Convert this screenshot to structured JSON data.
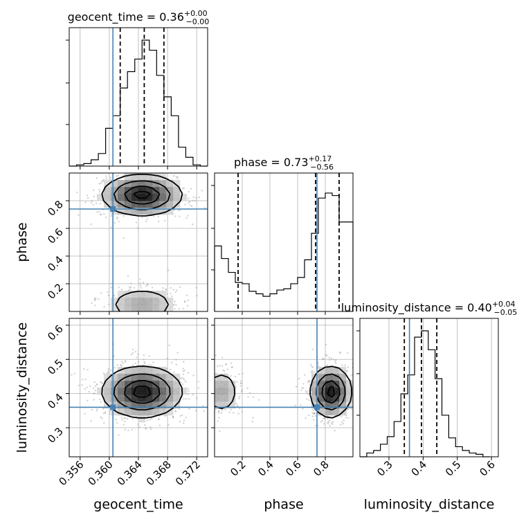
{
  "chart_data": {
    "type": "corner",
    "parameters": [
      "geocent_time",
      "phase",
      "luminosity_distance"
    ],
    "axis_labels": {
      "geocent_time": "geocent_time",
      "phase": "phase",
      "luminosity_distance": "luminosity_distance"
    },
    "ranges": {
      "geocent_time": [
        0.3545,
        0.3735
      ],
      "phase": [
        0.0,
        1.0
      ],
      "luminosity_distance": [
        0.215,
        0.62
      ]
    },
    "ticks": {
      "geocent_time": [
        "0.356",
        "0.360",
        "0.364",
        "0.368",
        "0.372"
      ],
      "phase": [
        "0.2",
        "0.4",
        "0.6",
        "0.8"
      ],
      "luminosity_distance": [
        "0.3",
        "0.4",
        "0.5",
        "0.6"
      ]
    },
    "truths": {
      "geocent_time": 0.3605,
      "phase": 0.74,
      "luminosity_distance": 0.36
    },
    "titles": {
      "geocent_time": {
        "name": "geocent_time = 0.36",
        "plus": "+0.00",
        "minus": "−0.00"
      },
      "phase": {
        "name": "phase = 0.73",
        "plus": "+0.17",
        "minus": "−0.56"
      },
      "luminosity_distance": {
        "name": "luminosity_distance = 0.40",
        "plus": "+0.04",
        "minus": "−0.05"
      }
    },
    "quantiles": {
      "geocent_time": [
        0.3615,
        0.3648,
        0.3675
      ],
      "phase": [
        0.17,
        0.73,
        0.9
      ],
      "luminosity_distance": [
        0.345,
        0.395,
        0.44
      ]
    },
    "histograms": {
      "geocent_time": {
        "edges": [
          0.3545,
          0.3555,
          0.3565,
          0.3575,
          0.3585,
          0.3595,
          0.3605,
          0.3615,
          0.3625,
          0.3635,
          0.3645,
          0.3655,
          0.3665,
          0.3675,
          0.3685,
          0.3695,
          0.3705,
          0.3715,
          0.3725,
          0.3735
        ],
        "heights": [
          0.0,
          0.01,
          0.02,
          0.05,
          0.1,
          0.3,
          0.4,
          0.62,
          0.75,
          0.85,
          1.0,
          0.92,
          0.72,
          0.55,
          0.4,
          0.15,
          0.07,
          0.01,
          0.0
        ]
      },
      "phase": {
        "edges": [
          0.0,
          0.05,
          0.1,
          0.15,
          0.2,
          0.25,
          0.3,
          0.35,
          0.4,
          0.45,
          0.5,
          0.55,
          0.6,
          0.65,
          0.7,
          0.75,
          0.8,
          0.85,
          0.9,
          0.95,
          1.0
        ],
        "heights": [
          0.52,
          0.42,
          0.31,
          0.23,
          0.22,
          0.16,
          0.14,
          0.12,
          0.14,
          0.17,
          0.18,
          0.22,
          0.27,
          0.41,
          0.62,
          0.9,
          0.94,
          0.92,
          0.71,
          0.71
        ]
      },
      "luminosity_distance": {
        "edges": [
          0.215,
          0.235,
          0.255,
          0.275,
          0.295,
          0.315,
          0.335,
          0.355,
          0.375,
          0.395,
          0.415,
          0.435,
          0.455,
          0.475,
          0.495,
          0.515,
          0.535,
          0.555,
          0.575,
          0.595
        ],
        "heights": [
          0.0,
          0.03,
          0.05,
          0.1,
          0.16,
          0.28,
          0.5,
          0.65,
          0.95,
          1.0,
          0.85,
          0.62,
          0.33,
          0.15,
          0.08,
          0.05,
          0.03,
          0.02,
          0.0
        ]
      }
    },
    "posterior_modes": [
      {
        "geocent_time": 0.3645,
        "phase": 0.84,
        "luminosity_distance": 0.405,
        "weight": 0.75
      },
      {
        "geocent_time": 0.3645,
        "phase": 0.05,
        "luminosity_distance": 0.405,
        "weight": 0.25
      }
    ],
    "grid": true,
    "legend": "none"
  }
}
